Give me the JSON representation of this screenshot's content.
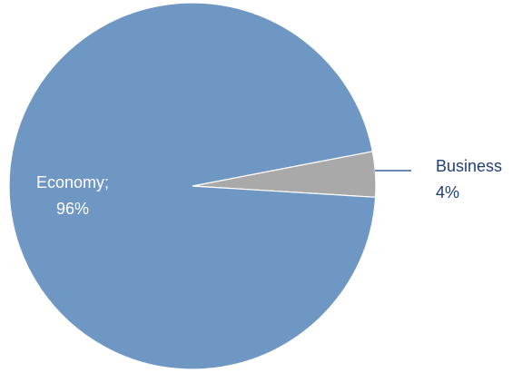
{
  "chart_data": {
    "type": "pie",
    "slices": [
      {
        "label": "Economy",
        "value": 96,
        "display": "Economy;",
        "value_text": "96%",
        "color": "#6f97c4"
      },
      {
        "label": "Business",
        "value": 4,
        "display": "Business",
        "value_text": "4%",
        "color": "#a9a9a9"
      }
    ],
    "leader_line_color": "#3f5f9e",
    "text_colors": {
      "inside": "#ffffff",
      "outside": "#1f3f7a"
    }
  }
}
